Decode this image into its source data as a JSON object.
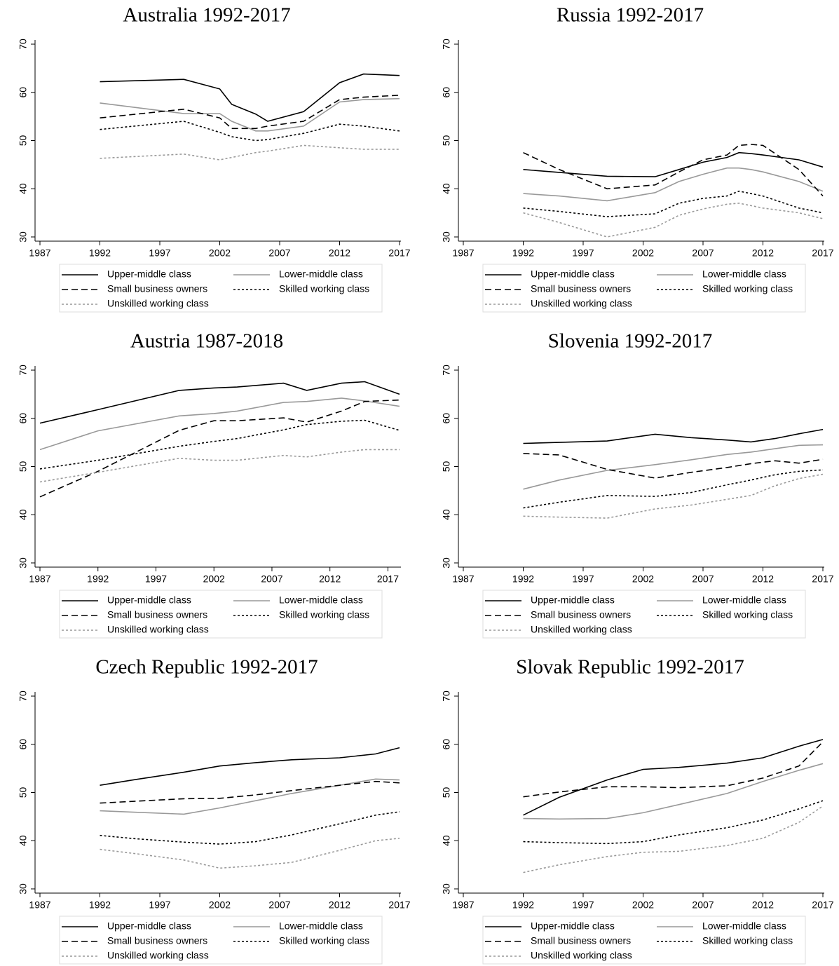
{
  "chart_data": [
    {
      "type": "line",
      "title": "Australia 1992-2017",
      "x": [
        1992,
        1999,
        2002,
        2003,
        2005,
        2006,
        2009,
        2012,
        2014,
        2017
      ],
      "xlim": [
        1987,
        2017
      ],
      "xticks": [
        1987,
        1992,
        1997,
        2002,
        2007,
        2012,
        2017
      ],
      "ylim": [
        30,
        70
      ],
      "yticks": [
        30,
        40,
        50,
        60,
        70
      ],
      "series": [
        {
          "name": "Upper-middle class",
          "color": "#000000",
          "dash": "solid",
          "values": [
            62.2,
            62.7,
            60.7,
            57.5,
            55.5,
            54.0,
            56,
            62,
            63.8,
            63.5
          ]
        },
        {
          "name": "Lower-middle class",
          "color": "#999999",
          "dash": "solid",
          "values": [
            57.8,
            55.6,
            55.6,
            54,
            52,
            52,
            53,
            58,
            58.5,
            58.7
          ]
        },
        {
          "name": "Small business owners",
          "color": "#000000",
          "dash": "dashed",
          "values": [
            54.7,
            56.5,
            54.7,
            52.5,
            52.5,
            53,
            54,
            58.5,
            59,
            59.4
          ]
        },
        {
          "name": "Skilled working class",
          "color": "#000000",
          "dash": "dotted",
          "values": [
            52.3,
            54,
            51.7,
            50.8,
            50,
            50.2,
            51.5,
            53.4,
            53,
            52
          ]
        },
        {
          "name": "Unskilled working class",
          "color": "#999999",
          "dash": "dotted",
          "values": [
            46.3,
            47.2,
            46,
            46.5,
            47.5,
            47.8,
            49,
            48.5,
            48.2,
            48.2
          ]
        }
      ]
    },
    {
      "type": "line",
      "title": "Russia 1992-2017",
      "x": [
        1992,
        1995,
        1999,
        2003,
        2005,
        2007,
        2009,
        2010,
        2011,
        2012,
        2015,
        2017
      ],
      "xlim": [
        1987,
        2017
      ],
      "xticks": [
        1987,
        1992,
        1997,
        2002,
        2007,
        2012,
        2017
      ],
      "ylim": [
        30,
        70
      ],
      "yticks": [
        30,
        40,
        50,
        60,
        70
      ],
      "series": [
        {
          "name": "Upper-middle class",
          "color": "#000000",
          "dash": "solid",
          "values": [
            44,
            43.4,
            42.6,
            42.5,
            44,
            45.5,
            46.5,
            47.5,
            47.3,
            47,
            46,
            44.5
          ]
        },
        {
          "name": "Lower-middle class",
          "color": "#999999",
          "dash": "solid",
          "values": [
            39,
            38.5,
            37.5,
            39.2,
            41.5,
            43,
            44.3,
            44.3,
            44,
            43.5,
            41.5,
            39.5
          ]
        },
        {
          "name": "Small business owners",
          "color": "#000000",
          "dash": "dashed",
          "values": [
            47.5,
            44,
            40,
            40.8,
            43.5,
            46,
            47,
            49,
            49.2,
            49,
            44,
            38.5
          ]
        },
        {
          "name": "Skilled working class",
          "color": "#000000",
          "dash": "dotted",
          "values": [
            36,
            35.3,
            34.2,
            34.8,
            37,
            38,
            38.5,
            39.5,
            39,
            38.5,
            36,
            35
          ]
        },
        {
          "name": "Unskilled working class",
          "color": "#999999",
          "dash": "dotted",
          "values": [
            35,
            33,
            30,
            32,
            34.5,
            35.8,
            36.8,
            37,
            36.5,
            36,
            35,
            33.8
          ]
        }
      ]
    },
    {
      "type": "line",
      "title": "Austria 1987-2018",
      "x": [
        1987,
        1992,
        1999,
        2002,
        2004,
        2008,
        2010,
        2013,
        2015,
        2018
      ],
      "xlim": [
        1987,
        2018
      ],
      "xticks": [
        1987,
        1992,
        1997,
        2002,
        2007,
        2012,
        2017
      ],
      "ylim": [
        30,
        70
      ],
      "yticks": [
        30,
        40,
        50,
        60,
        70
      ],
      "series": [
        {
          "name": "Upper-middle class",
          "color": "#000000",
          "dash": "solid",
          "values": [
            59,
            61.8,
            65.8,
            66.3,
            66.5,
            67.3,
            65.8,
            67.3,
            67.6,
            65
          ]
        },
        {
          "name": "Lower-middle class",
          "color": "#999999",
          "dash": "solid",
          "values": [
            53.5,
            57.4,
            60.5,
            61,
            61.5,
            63.3,
            63.5,
            64.2,
            63.6,
            62.5
          ]
        },
        {
          "name": "Small business owners",
          "color": "#000000",
          "dash": "dashed",
          "values": [
            43.7,
            49,
            57.5,
            59.5,
            59.5,
            60.1,
            59.2,
            61.5,
            63.5,
            63.8
          ]
        },
        {
          "name": "Skilled working class",
          "color": "#000000",
          "dash": "dotted",
          "values": [
            49.5,
            51.3,
            54.2,
            55.2,
            55.8,
            57.6,
            58.7,
            59.4,
            59.6,
            57.5
          ]
        },
        {
          "name": "Unskilled working class",
          "color": "#999999",
          "dash": "dotted",
          "values": [
            46.8,
            48.8,
            51.7,
            51.3,
            51.3,
            52.3,
            52,
            53,
            53.5,
            53.5
          ]
        }
      ]
    },
    {
      "type": "line",
      "title": "Slovenia 1992-2017",
      "x": [
        1992,
        1995,
        1999,
        2003,
        2006,
        2009,
        2011,
        2013,
        2015,
        2017
      ],
      "xlim": [
        1987,
        2017
      ],
      "xticks": [
        1987,
        1992,
        1997,
        2002,
        2007,
        2012,
        2017
      ],
      "ylim": [
        30,
        70
      ],
      "yticks": [
        30,
        40,
        50,
        60,
        70
      ],
      "series": [
        {
          "name": "Upper-middle class",
          "color": "#000000",
          "dash": "solid",
          "values": [
            54.8,
            55,
            55.3,
            56.7,
            56,
            55.5,
            55.1,
            55.8,
            56.8,
            57.7
          ]
        },
        {
          "name": "Lower-middle class",
          "color": "#999999",
          "dash": "solid",
          "values": [
            45.3,
            47.2,
            49.2,
            50.4,
            51.4,
            52.5,
            53,
            53.7,
            54.4,
            54.5
          ]
        },
        {
          "name": "Small business owners",
          "color": "#000000",
          "dash": "dashed",
          "values": [
            52.7,
            52.4,
            49.4,
            47.6,
            48.8,
            49.8,
            50.6,
            51.2,
            50.7,
            51.5
          ]
        },
        {
          "name": "Skilled working class",
          "color": "#000000",
          "dash": "dotted",
          "values": [
            41.4,
            42.6,
            44,
            43.8,
            44.6,
            46.2,
            47.2,
            48.3,
            49,
            49.3
          ]
        },
        {
          "name": "Unskilled working class",
          "color": "#999999",
          "dash": "dotted",
          "values": [
            39.7,
            39.5,
            39.3,
            41.2,
            42,
            43.2,
            44,
            46,
            47.5,
            48.4
          ]
        }
      ]
    },
    {
      "type": "line",
      "title": "Czech Republic 1992-2017",
      "x": [
        1992,
        1995,
        1999,
        2002,
        2005,
        2008,
        2012,
        2015,
        2017
      ],
      "xlim": [
        1987,
        2017
      ],
      "xticks": [
        1987,
        1992,
        1997,
        2002,
        2007,
        2012,
        2017
      ],
      "ylim": [
        30,
        70
      ],
      "yticks": [
        30,
        40,
        50,
        60,
        70
      ],
      "series": [
        {
          "name": "Upper-middle class",
          "color": "#000000",
          "dash": "solid",
          "values": [
            51.5,
            52.7,
            54.2,
            55.5,
            56.2,
            56.8,
            57.2,
            58,
            59.3
          ]
        },
        {
          "name": "Lower-middle class",
          "color": "#999999",
          "dash": "solid",
          "values": [
            46.2,
            45.9,
            45.5,
            46.8,
            48.3,
            49.8,
            51.5,
            52.8,
            52.6
          ]
        },
        {
          "name": "Small business owners",
          "color": "#000000",
          "dash": "dashed",
          "values": [
            47.8,
            48.2,
            48.7,
            48.8,
            49.5,
            50.4,
            51.5,
            52.3,
            52
          ]
        },
        {
          "name": "Skilled working class",
          "color": "#000000",
          "dash": "dotted",
          "values": [
            41.1,
            40.4,
            39.7,
            39.3,
            39.8,
            41.2,
            43.5,
            45.3,
            46
          ]
        },
        {
          "name": "Unskilled working class",
          "color": "#999999",
          "dash": "dotted",
          "values": [
            38.2,
            37.3,
            36,
            34.3,
            34.8,
            35.5,
            38,
            40,
            40.5
          ]
        }
      ]
    },
    {
      "type": "line",
      "title": "Slovak Republic 1992-2017",
      "x": [
        1992,
        1995,
        1999,
        2002,
        2005,
        2009,
        2012,
        2015,
        2017
      ],
      "xlim": [
        1987,
        2017
      ],
      "xticks": [
        1987,
        1992,
        1997,
        2002,
        2007,
        2012,
        2017
      ],
      "ylim": [
        30,
        70
      ],
      "yticks": [
        30,
        40,
        50,
        60,
        70
      ],
      "series": [
        {
          "name": "Upper-middle class",
          "color": "#000000",
          "dash": "solid",
          "values": [
            45.3,
            49,
            52.6,
            54.8,
            55.2,
            56.1,
            57.2,
            59.6,
            61
          ]
        },
        {
          "name": "Lower-middle class",
          "color": "#999999",
          "dash": "solid",
          "values": [
            44.6,
            44.5,
            44.6,
            45.8,
            47.5,
            49.8,
            52.3,
            54.6,
            56
          ]
        },
        {
          "name": "Small business owners",
          "color": "#000000",
          "dash": "dashed",
          "values": [
            49.1,
            50.1,
            51.2,
            51.2,
            51,
            51.4,
            53,
            55.5,
            60.5
          ]
        },
        {
          "name": "Skilled working class",
          "color": "#000000",
          "dash": "dotted",
          "values": [
            39.8,
            39.6,
            39.4,
            39.8,
            41.2,
            42.7,
            44.3,
            46.6,
            48.3
          ]
        },
        {
          "name": "Unskilled working class",
          "color": "#999999",
          "dash": "dotted",
          "values": [
            33.4,
            35,
            36.7,
            37.6,
            37.8,
            39,
            40.5,
            43.8,
            47.2
          ]
        }
      ]
    }
  ]
}
